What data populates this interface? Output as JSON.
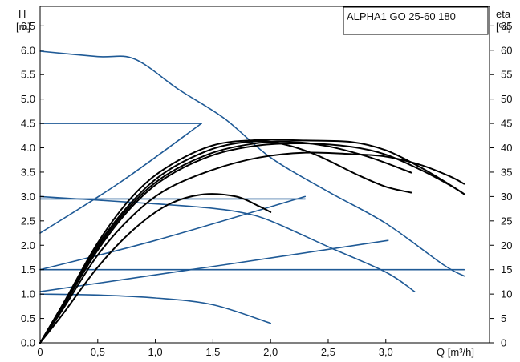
{
  "chart_data": {
    "type": "line",
    "title": "ALPHA1 GO 25-60 180",
    "ylabel_left": [
      "H",
      "[m]"
    ],
    "ylabel_right": [
      "eta",
      "[%]"
    ],
    "xlabel": "Q [m³/h]",
    "xlim": [
      0,
      3.9
    ],
    "ylim_left": [
      0,
      6.9
    ],
    "ylim_right": [
      0,
      69
    ],
    "x_ticks": [
      0,
      0.5,
      1.0,
      1.5,
      2.0,
      2.5,
      3.0
    ],
    "x_tick_labels": [
      "0",
      "0,5",
      "1,0",
      "1,5",
      "2,0",
      "2,5",
      "3,0"
    ],
    "y_ticks_left": [
      0,
      0.5,
      1.0,
      1.5,
      2.0,
      2.5,
      3.0,
      3.5,
      4.0,
      4.5,
      5.0,
      5.5,
      6.0,
      6.5
    ],
    "y_tick_labels_left": [
      "0.0",
      "0.5",
      "1.0",
      "1.5",
      "2.0",
      "2.5",
      "3.0",
      "3.5",
      "4.0",
      "4.5",
      "5.0",
      "5.5",
      "6.0",
      "6.5"
    ],
    "y_ticks_right": [
      0,
      5,
      10,
      15,
      20,
      25,
      30,
      35,
      40,
      45,
      50,
      55,
      60,
      65
    ],
    "y_tick_labels_right": [
      "0",
      "5",
      "10",
      "15",
      "20",
      "25",
      "30",
      "35",
      "40",
      "45",
      "50",
      "55",
      "60",
      "65"
    ],
    "grid": false,
    "colors": {
      "head": "#1f5a96",
      "efficiency": "#000000"
    },
    "series": [
      {
        "kind": "head",
        "points": [
          [
            0,
            5.98
          ],
          [
            0.5,
            5.87
          ],
          [
            0.82,
            5.82
          ],
          [
            1.2,
            5.2
          ],
          [
            1.6,
            4.6
          ],
          [
            2.0,
            3.8
          ],
          [
            2.5,
            3.1
          ],
          [
            3.0,
            2.45
          ],
          [
            3.5,
            1.6
          ],
          [
            3.68,
            1.37
          ]
        ]
      },
      {
        "kind": "head",
        "points": [
          [
            0,
            4.5
          ],
          [
            1.4,
            4.5
          ]
        ]
      },
      {
        "kind": "head",
        "points": [
          [
            0,
            2.95
          ],
          [
            2.3,
            2.95
          ]
        ]
      },
      {
        "kind": "head",
        "points": [
          [
            0,
            1.5
          ],
          [
            3.68,
            1.5
          ]
        ]
      },
      {
        "kind": "head",
        "points": [
          [
            0,
            2.25
          ],
          [
            0.7,
            3.3
          ],
          [
            1.4,
            4.5
          ]
        ]
      },
      {
        "kind": "head",
        "points": [
          [
            0,
            1.5
          ],
          [
            1.0,
            2.1
          ],
          [
            2.3,
            3.0
          ]
        ]
      },
      {
        "kind": "head",
        "points": [
          [
            0,
            1.05
          ],
          [
            1.6,
            1.6
          ],
          [
            3.02,
            2.1
          ]
        ]
      },
      {
        "kind": "head",
        "points": [
          [
            0,
            3.0
          ],
          [
            0.8,
            2.88
          ],
          [
            1.4,
            2.78
          ],
          [
            1.73,
            2.68
          ],
          [
            2.0,
            2.5
          ],
          [
            2.5,
            1.97
          ],
          [
            3.0,
            1.45
          ],
          [
            3.25,
            1.05
          ]
        ]
      },
      {
        "kind": "head",
        "points": [
          [
            0,
            1.0
          ],
          [
            0.5,
            0.98
          ],
          [
            1.0,
            0.92
          ],
          [
            1.5,
            0.78
          ],
          [
            2.0,
            0.4
          ]
        ]
      },
      {
        "kind": "efficiency",
        "points": [
          [
            0,
            0
          ],
          [
            0.2,
            6
          ],
          [
            0.5,
            15.5
          ],
          [
            0.8,
            23
          ],
          [
            1.1,
            28.2
          ],
          [
            1.4,
            30.4
          ],
          [
            1.7,
            30
          ],
          [
            1.9,
            28
          ],
          [
            2.0,
            26.8
          ]
        ]
      },
      {
        "kind": "efficiency",
        "points": [
          [
            0,
            0
          ],
          [
            0.2,
            7
          ],
          [
            0.5,
            18
          ],
          [
            0.8,
            26
          ],
          [
            1.1,
            31.5
          ],
          [
            1.5,
            35.5
          ],
          [
            1.9,
            38
          ],
          [
            2.3,
            39
          ],
          [
            2.7,
            38.7
          ],
          [
            3.0,
            38.2
          ],
          [
            3.3,
            36.5
          ],
          [
            3.55,
            34.2
          ],
          [
            3.68,
            32.6
          ]
        ]
      },
      {
        "kind": "efficiency",
        "points": [
          [
            0,
            0
          ],
          [
            0.2,
            7.5
          ],
          [
            0.5,
            19
          ],
          [
            0.8,
            28
          ],
          [
            1.1,
            34
          ],
          [
            1.5,
            38.5
          ],
          [
            1.9,
            40.5
          ],
          [
            2.3,
            40.9
          ],
          [
            2.7,
            40.2
          ],
          [
            3.0,
            38.6
          ],
          [
            3.3,
            35.5
          ],
          [
            3.55,
            32.4
          ],
          [
            3.68,
            30.5
          ]
        ]
      },
      {
        "kind": "efficiency",
        "points": [
          [
            0,
            0
          ],
          [
            0.2,
            7.5
          ],
          [
            0.5,
            19.5
          ],
          [
            0.8,
            28.5
          ],
          [
            1.1,
            34.5
          ],
          [
            1.5,
            39
          ],
          [
            1.9,
            41
          ],
          [
            2.2,
            41.2
          ],
          [
            2.5,
            40.3
          ],
          [
            2.8,
            38.5
          ],
          [
            3.0,
            36.9
          ],
          [
            3.22,
            34.9
          ]
        ]
      },
      {
        "kind": "efficiency",
        "points": [
          [
            0,
            0
          ],
          [
            0.2,
            8
          ],
          [
            0.5,
            20
          ],
          [
            0.8,
            29
          ],
          [
            1.1,
            35.2
          ],
          [
            1.5,
            39.8
          ],
          [
            1.85,
            41.3
          ],
          [
            2.1,
            40.8
          ],
          [
            2.4,
            38.5
          ],
          [
            2.75,
            34.5
          ],
          [
            3.0,
            32
          ],
          [
            3.22,
            30.8
          ]
        ]
      },
      {
        "kind": "efficiency",
        "points": [
          [
            0,
            0
          ],
          [
            0.2,
            8
          ],
          [
            0.5,
            20.5
          ],
          [
            0.8,
            30
          ],
          [
            1.1,
            36
          ],
          [
            1.5,
            40.5
          ],
          [
            1.9,
            41.6
          ],
          [
            2.3,
            41.5
          ],
          [
            2.7,
            41.2
          ],
          [
            3.0,
            39.5
          ],
          [
            3.3,
            36
          ],
          [
            3.55,
            32.5
          ],
          [
            3.68,
            30.5
          ]
        ]
      }
    ]
  }
}
